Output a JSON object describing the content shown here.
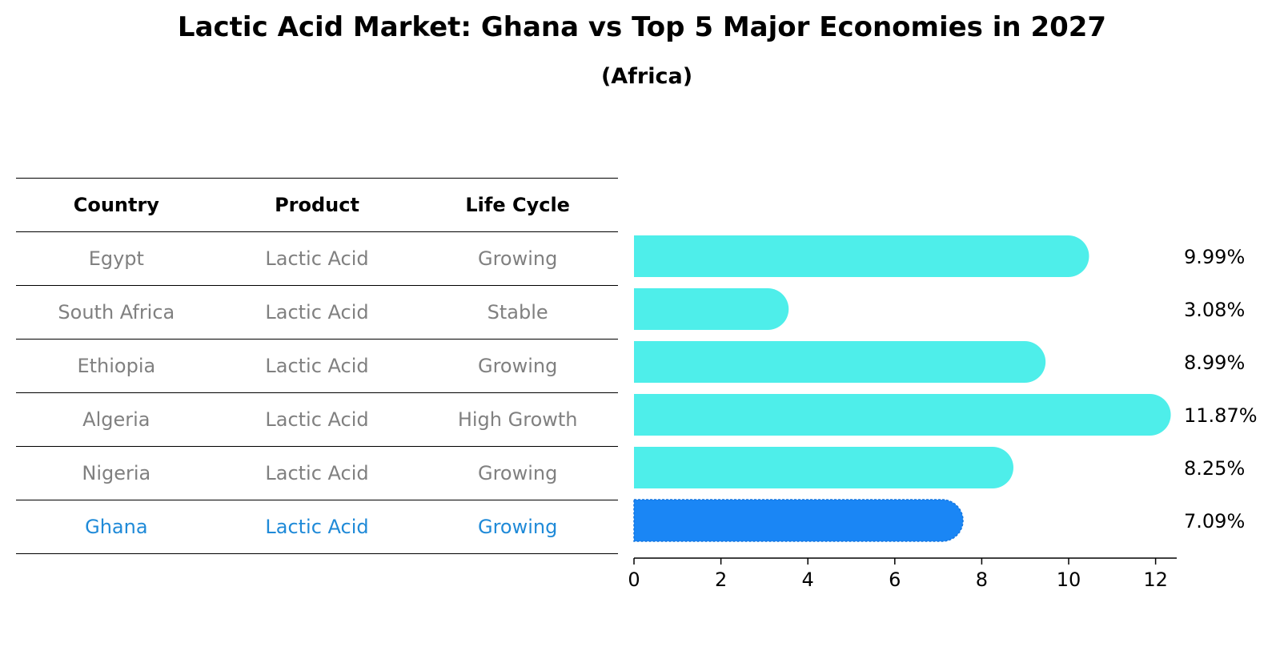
{
  "title": "Lactic Acid Market: Ghana vs Top 5 Major Economies in 2027",
  "subtitle": "(Africa)",
  "table": {
    "headers": [
      "Country",
      "Product",
      "Life Cycle"
    ],
    "rows": [
      {
        "country": "Egypt",
        "product": "Lactic Acid",
        "life_cycle": "Growing"
      },
      {
        "country": "South Africa",
        "product": "Lactic Acid",
        "life_cycle": "Stable"
      },
      {
        "country": "Ethiopia",
        "product": "Lactic Acid",
        "life_cycle": "Growing"
      },
      {
        "country": "Algeria",
        "product": "Lactic Acid",
        "life_cycle": "High Growth"
      },
      {
        "country": "Nigeria",
        "product": "Lactic Acid",
        "life_cycle": "Growing"
      },
      {
        "country": "Ghana",
        "product": "Lactic Acid",
        "life_cycle": "Growing"
      }
    ]
  },
  "chart_data": {
    "type": "bar",
    "orientation": "horizontal",
    "categories": [
      "Egypt",
      "South Africa",
      "Ethiopia",
      "Algeria",
      "Nigeria",
      "Ghana"
    ],
    "values": [
      9.99,
      3.08,
      8.99,
      11.87,
      8.25,
      7.09
    ],
    "value_labels": [
      "9.99%",
      "3.08%",
      "8.99%",
      "11.87%",
      "8.25%",
      "7.09%"
    ],
    "highlight": "Ghana",
    "xlim": [
      0,
      12.5
    ],
    "xticks": [
      0,
      2,
      4,
      6,
      8,
      10,
      12
    ],
    "colors": {
      "default": "#4eeeea",
      "highlight": "#1a86f5"
    },
    "xlabel": "",
    "ylabel": ""
  }
}
